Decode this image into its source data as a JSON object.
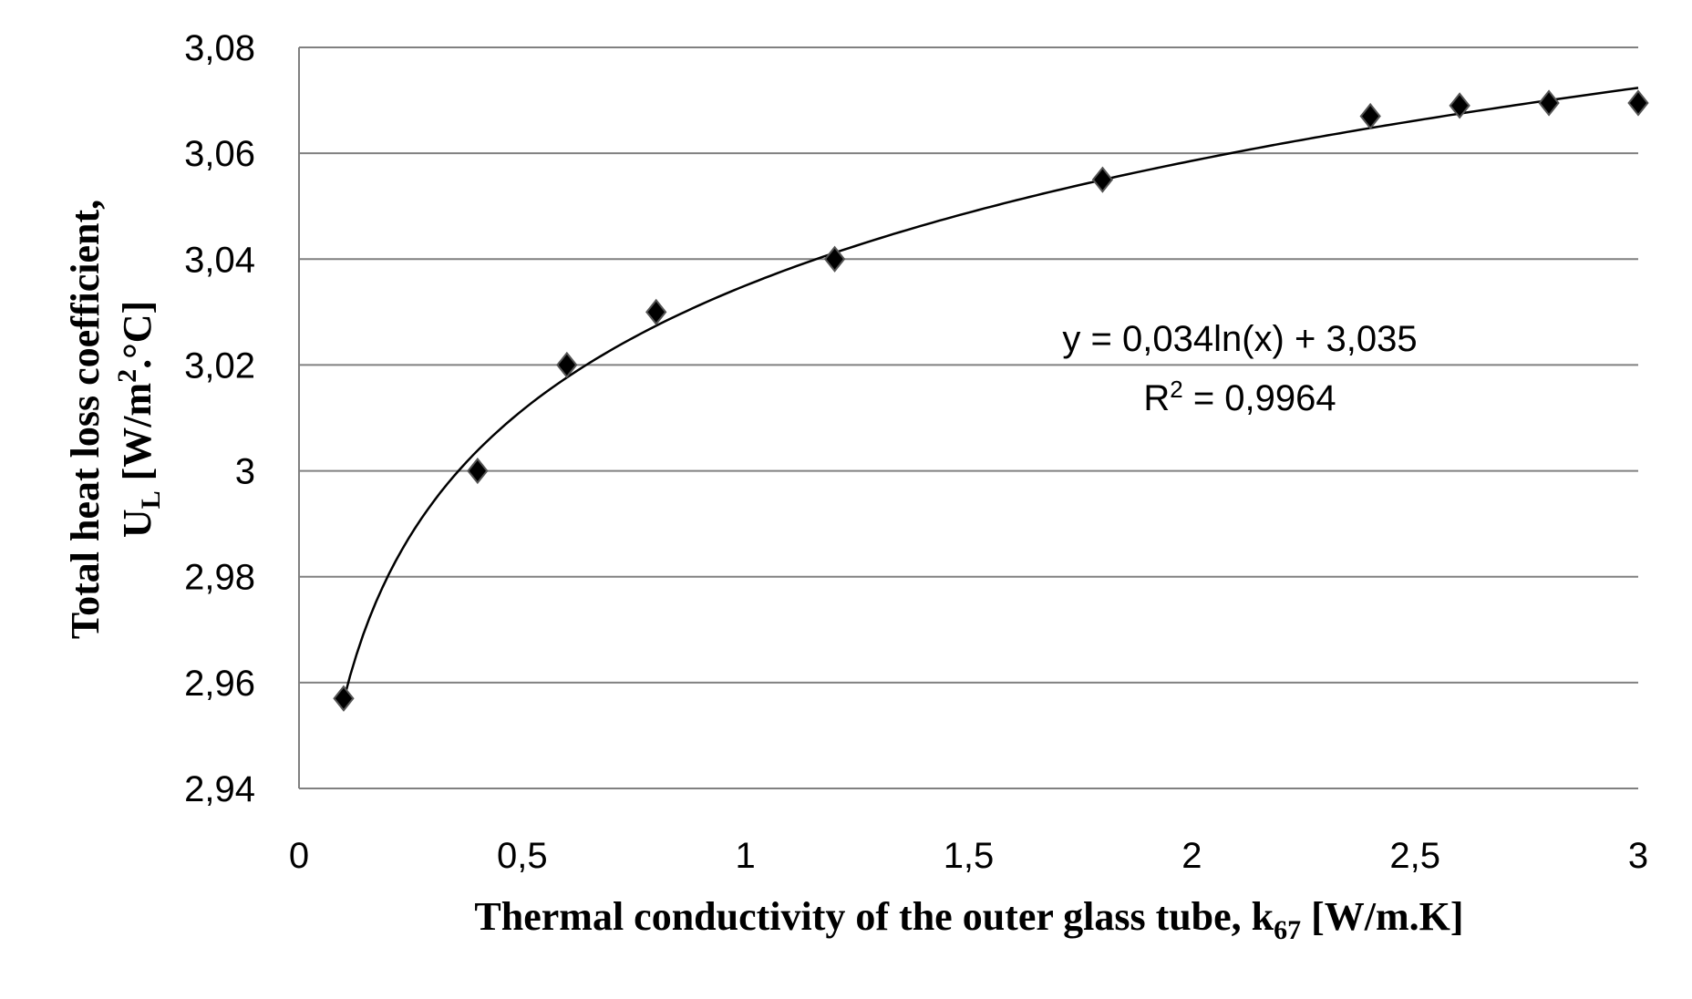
{
  "chart_data": {
    "type": "scatter",
    "xlabel": "Thermal conductivity of the outer glass tube, k",
    "xlabel_sub": "67",
    "xlabel_unit": " [W/m.K]",
    "ylabel_line1": "Total heat loss coefficient,",
    "ylabel_line2_main": "U",
    "ylabel_line2_sub": "L",
    "ylabel_line2_unit": " [W/m",
    "ylabel_line2_sup": "2",
    "ylabel_line2_end": ".°C]",
    "xlim": [
      0,
      3
    ],
    "ylim": [
      2.94,
      3.08
    ],
    "x_ticks": [
      "0",
      "0,5",
      "1",
      "1,5",
      "2",
      "2,5",
      "3"
    ],
    "y_ticks": [
      "2,94",
      "2,96",
      "2,98",
      "3",
      "3,02",
      "3,04",
      "3,06",
      "3,08"
    ],
    "grid": "horizontal",
    "marker": "diamond",
    "colors": {
      "marker": "#000000",
      "grid": "#808080",
      "trendline": "#000000"
    },
    "series": [
      {
        "x": [
          0.1,
          0.4,
          0.6,
          0.8,
          1.2,
          1.8,
          2.4,
          2.6,
          2.8,
          3.0
        ],
        "y": [
          2.957,
          3.0,
          3.02,
          3.03,
          3.04,
          3.055,
          3.067,
          3.069,
          3.0695,
          3.0695
        ]
      }
    ],
    "trendline": {
      "type": "logarithmic",
      "a": 0.034,
      "b": 3.035,
      "equation": "y = 0,034ln(x) + 3,035",
      "r2_prefix": "R",
      "r2_sup": "2",
      "r2_value": " = 0,9964"
    }
  }
}
